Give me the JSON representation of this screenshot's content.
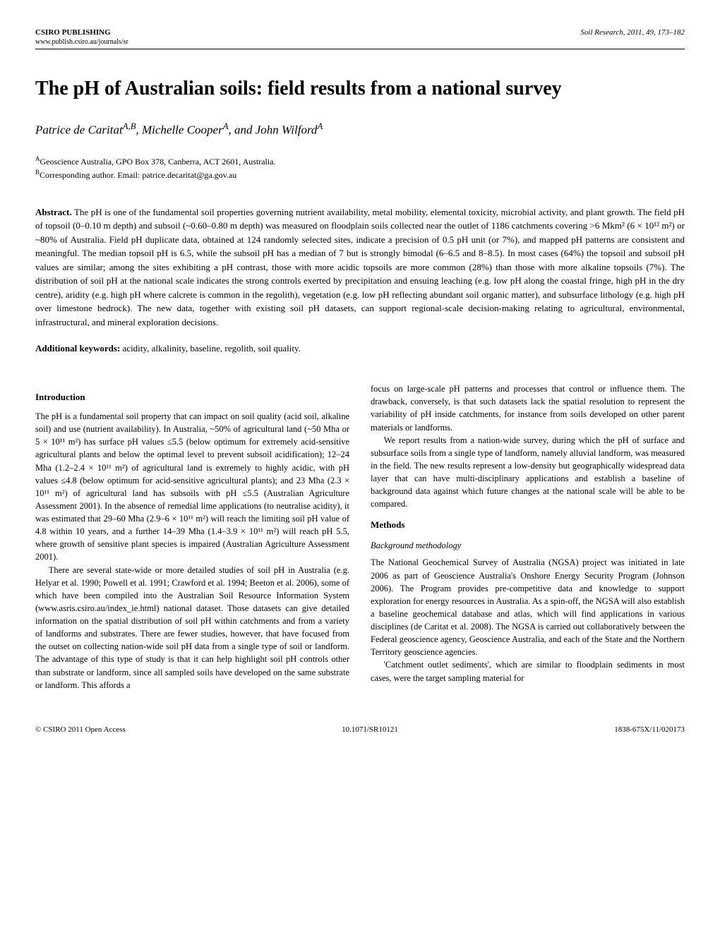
{
  "header": {
    "publisher": "CSIRO PUBLISHING",
    "url": "www.publish.csiro.au/journals/sr",
    "citation": "Soil Research, 2011, 49, 173–182"
  },
  "title": "The pH of Australian soils: field results from a national survey",
  "authors_html": "Patrice de Caritat<sup>A,B</sup>, Michelle Cooper<sup>A</sup>, and John Wilford<sup>A</sup>",
  "affiliations": [
    "AGeoscience Australia, GPO Box 378, Canberra, ACT 2601, Australia.",
    "BCorresponding author. Email: patrice.decaritat@ga.gov.au"
  ],
  "abstract_label": "Abstract.",
  "abstract_text": "The pH is one of the fundamental soil properties governing nutrient availability, metal mobility, elemental toxicity, microbial activity, and plant growth. The field pH of topsoil (0–0.10 m depth) and subsoil (~0.60–0.80 m depth) was measured on floodplain soils collected near the outlet of 1186 catchments covering >6 Mkm² (6 × 10¹² m²) or ~80% of Australia. Field pH duplicate data, obtained at 124 randomly selected sites, indicate a precision of 0.5 pH unit (or 7%), and mapped pH patterns are consistent and meaningful. The median topsoil pH is 6.5, while the subsoil pH has a median of 7 but is strongly bimodal (6–6.5 and 8–8.5). In most cases (64%) the topsoil and subsoil pH values are similar; among the sites exhibiting a pH contrast, those with more acidic topsoils are more common (28%) than those with more alkaline topsoils (7%). The distribution of soil pH at the national scale indicates the strong controls exerted by precipitation and ensuing leaching (e.g. low pH along the coastal fringe, high pH in the dry centre), aridity (e.g. high pH where calcrete is common in the regolith), vegetation (e.g. low pH reflecting abundant soil organic matter), and subsurface lithology (e.g. high pH over limestone bedrock). The new data, together with existing soil pH datasets, can support regional-scale decision-making relating to agricultural, environmental, infrastructural, and mineral exploration decisions.",
  "keywords_label": "Additional keywords:",
  "keywords_text": "acidity, alkalinity, baseline, regolith, soil quality.",
  "left_col": {
    "heading": "Introduction",
    "p1": "The pH is a fundamental soil property that can impact on soil quality (acid soil, alkaline soil) and use (nutrient availability). In Australia, ~50% of agricultural land (~50 Mha or 5 × 10¹¹ m²) has surface pH values ≤5.5 (below optimum for extremely acid-sensitive agricultural plants and below the optimal level to prevent subsoil acidification); 12–24 Mha (1.2–2.4 × 10¹¹ m²) of agricultural land is extremely to highly acidic, with pH values ≤4.8 (below optimum for acid-sensitive agricultural plants); and 23 Mha (2.3 × 10¹¹ m²) of agricultural land has subsoils with pH ≤5.5 (Australian Agriculture Assessment 2001). In the absence of remedial lime applications (to neutralise acidity), it was estimated that 29–60 Mha (2.9–6 × 10¹¹ m²) will reach the limiting soil pH value of 4.8 within 10 years, and a further 14–39 Mha (1.4–3.9 × 10¹¹ m²) will reach pH 5.5, where growth of sensitive plant species is impaired (Australian Agriculture Assessment 2001).",
    "p2": "There are several state-wide or more detailed studies of soil pH in Australia (e.g. Helyar et al. 1990; Powell et al. 1991; Crawford et al. 1994; Beeton et al. 2006), some of which have been compiled into the Australian Soil Resource Information System (www.asris.csiro.au/index_ie.html) national dataset. Those datasets can give detailed information on the spatial distribution of soil pH within catchments and from a variety of landforms and substrates. There are fewer studies, however, that have focused from the outset on collecting nation-wide soil pH data from a single type of soil or landform. The advantage of this type of study is that it can help highlight soil pH controls other than substrate or landform, since all sampled soils have developed on the same substrate or landform. This affords a"
  },
  "right_col": {
    "p1": "focus on large-scale pH patterns and processes that control or influence them. The drawback, conversely, is that such datasets lack the spatial resolution to represent the variability of pH inside catchments, for instance from soils developed on other parent materials or landforms.",
    "p2": "We report results from a nation-wide survey, during which the pH of surface and subsurface soils from a single type of landform, namely alluvial landform, was measured in the field. The new results represent a low-density but geographically widespread data layer that can have multi-disciplinary applications and establish a baseline of background data against which future changes at the national scale will be able to be compared.",
    "heading2": "Methods",
    "subheading": "Background methodology",
    "p3": "The National Geochemical Survey of Australia (NGSA) project was initiated in late 2006 as part of Geoscience Australia's Onshore Energy Security Program (Johnson 2006). The Program provides pre-competitive data and knowledge to support exploration for energy resources in Australia. As a spin-off, the NGSA will also establish a baseline geochemical database and atlas, which will find applications in various disciplines (de Caritat et al. 2008). The NGSA is carried out collaboratively between the Federal geoscience agency, Geoscience Australia, and each of the State and the Northern Territory geoscience agencies.",
    "p4": "'Catchment outlet sediments', which are similar to floodplain sediments in most cases, were the target sampling material for"
  },
  "footer": {
    "left": "© CSIRO 2011  Open Access",
    "center": "10.1071/SR10121",
    "right": "1838-675X/11/020173"
  }
}
